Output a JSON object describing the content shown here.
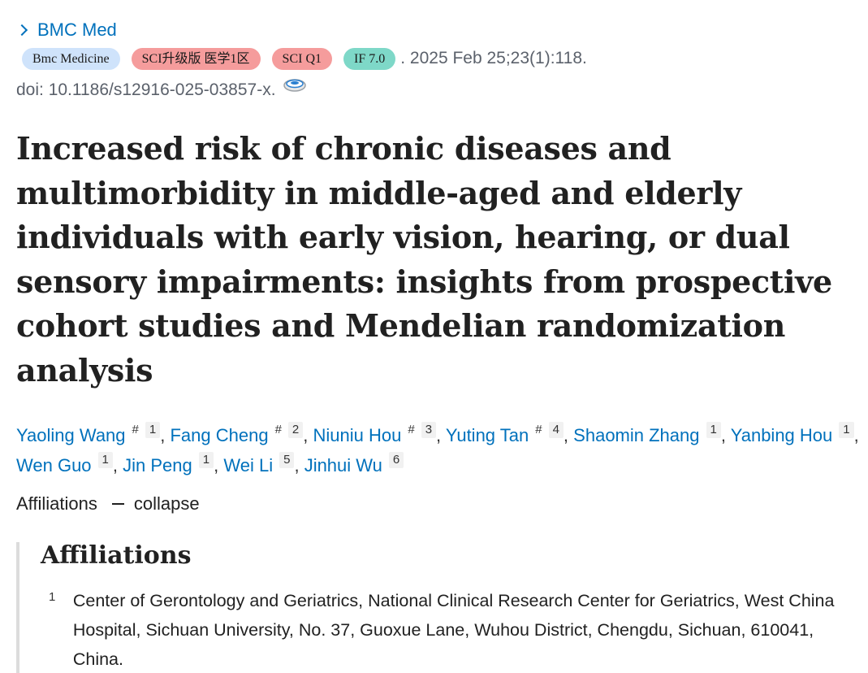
{
  "journal": {
    "link_label": "BMC Med",
    "chevron_icon": "chevron-right-icon"
  },
  "badges": {
    "journal": "Bmc Medicine",
    "sci_upgrade": "SCI升级版 医学1区",
    "sci_quartile": "SCI Q1",
    "impact_factor": "IF 7.0"
  },
  "citation": ". 2025 Feb 25;23(1):118.",
  "doi": "doi: 10.1186/s12916-025-03857-x.",
  "cite_icon": "citation-tool-icon",
  "article": {
    "title": "Increased risk of chronic diseases and multimorbidity in middle-aged and elderly individuals with early vision, hearing, or dual sensory impairments: insights from prospective cohort studies and Mendelian randomization analysis"
  },
  "authors": [
    {
      "name": "Yaoling Wang",
      "equal": "#",
      "aff": "1"
    },
    {
      "name": "Fang Cheng",
      "equal": "#",
      "aff": "2"
    },
    {
      "name": "Niuniu Hou",
      "equal": "#",
      "aff": "3"
    },
    {
      "name": "Yuting Tan",
      "equal": "#",
      "aff": "4"
    },
    {
      "name": "Shaomin Zhang",
      "equal": "",
      "aff": "1"
    },
    {
      "name": "Yanbing Hou",
      "equal": "",
      "aff": "1"
    },
    {
      "name": "Wen Guo",
      "equal": "",
      "aff": "1"
    },
    {
      "name": "Jin Peng",
      "equal": "",
      "aff": "1"
    },
    {
      "name": "Wei Li",
      "equal": "",
      "aff": "5"
    },
    {
      "name": "Jinhui Wu",
      "equal": "",
      "aff": "6"
    }
  ],
  "author_separator": ",",
  "affiliations_toggle": {
    "label": "Affiliations",
    "action": "collapse"
  },
  "affiliations": {
    "heading": "Affiliations",
    "items": [
      {
        "number": "1",
        "text": "Center of Gerontology and Geriatrics, National Clinical Research Center for Geriatrics, West China Hospital, Sichuan University, No. 37, Guoxue Lane, Wuhou District, Chengdu, Sichuan, 610041, China."
      }
    ]
  }
}
